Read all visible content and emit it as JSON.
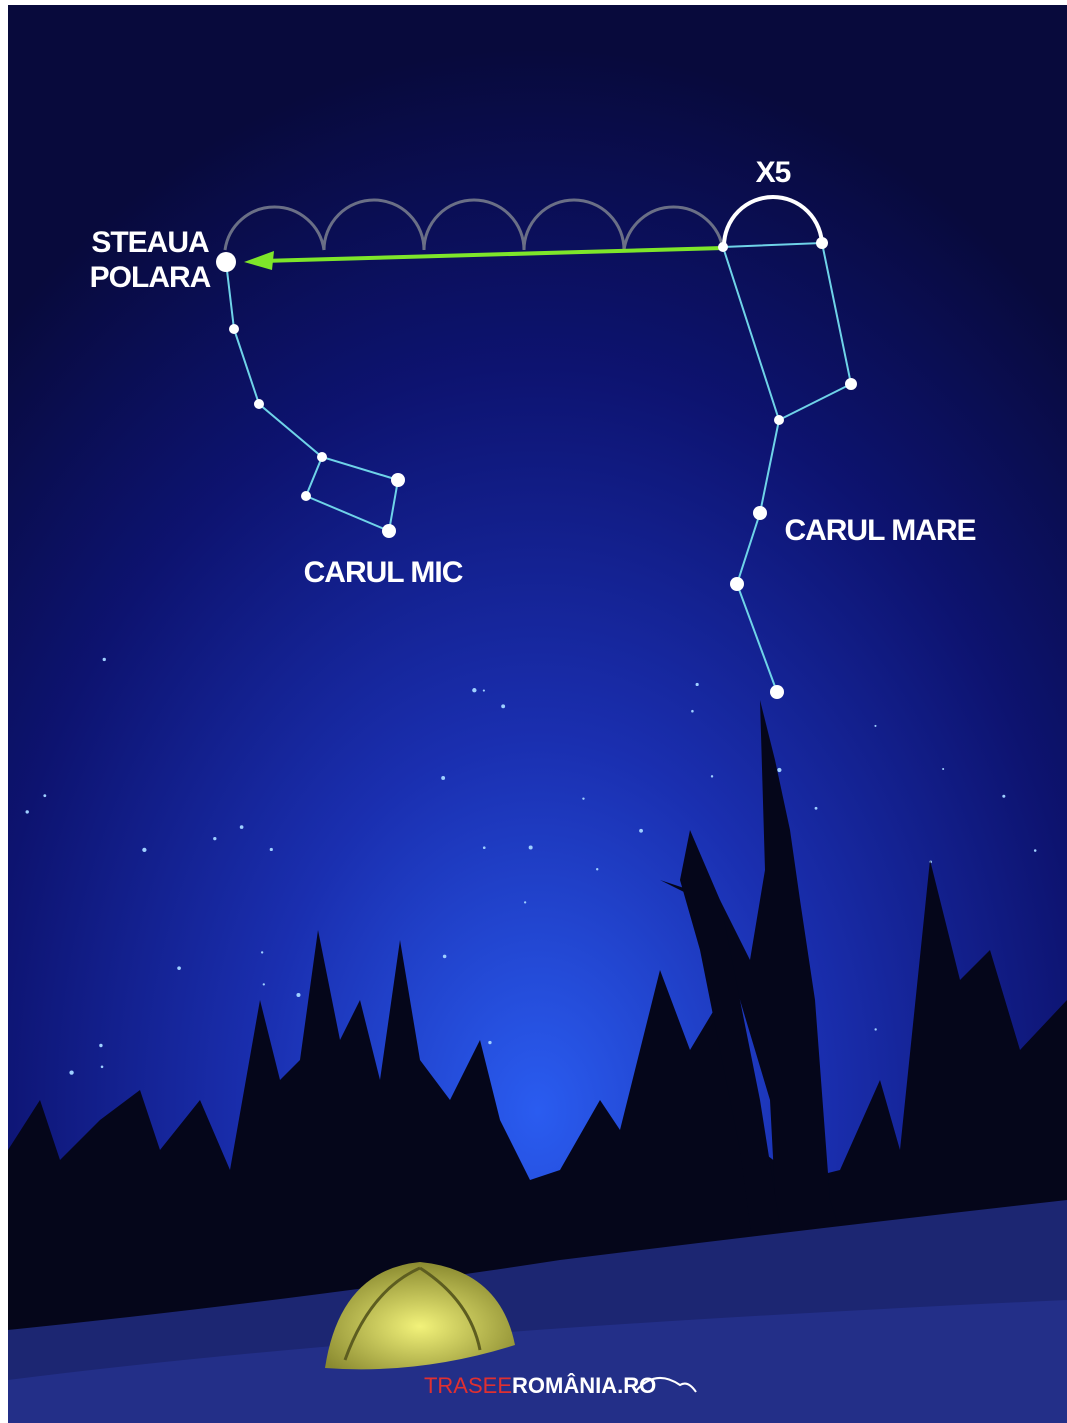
{
  "labels": {
    "polaris_line1": "STEAUA",
    "polaris_line2": "POLARA",
    "multiplier": "X5",
    "big_dipper": "CARUL MARE",
    "little_dipper": "CARUL MIC"
  },
  "logo": {
    "part1": "TRASEE",
    "part2": "ROMÂNIA.RO"
  }
}
